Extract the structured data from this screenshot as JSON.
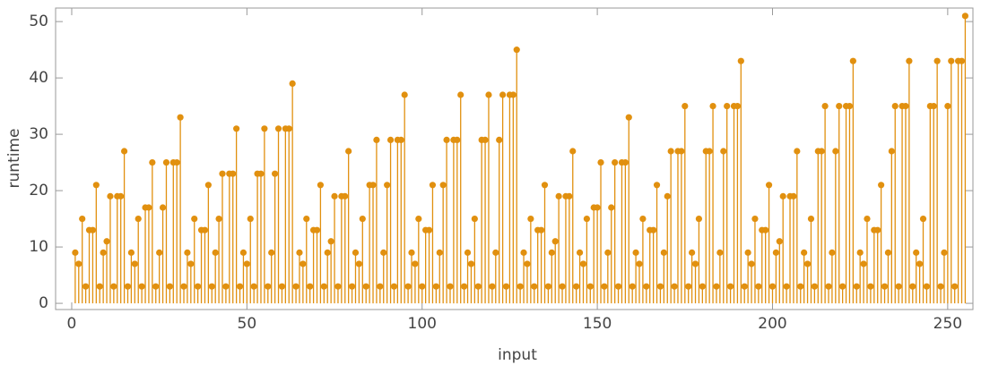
{
  "chart_data": {
    "type": "stem",
    "xlabel": "input",
    "ylabel": "runtime",
    "color": "#e1900f",
    "xlim": [
      -4.6,
      257.2
    ],
    "ylim": [
      -1.1,
      52.4
    ],
    "xticks": [
      0,
      50,
      100,
      150,
      200,
      250
    ],
    "yticks": [
      0,
      10,
      20,
      30,
      40,
      50
    ],
    "x": [
      1,
      2,
      3,
      4,
      5,
      6,
      7,
      8,
      9,
      10,
      11,
      12,
      13,
      14,
      15,
      16,
      17,
      18,
      19,
      20,
      21,
      22,
      23,
      24,
      25,
      26,
      27,
      28,
      29,
      30,
      31,
      32,
      33,
      34,
      35,
      36,
      37,
      38,
      39,
      40,
      41,
      42,
      43,
      44,
      45,
      46,
      47,
      48,
      49,
      50,
      51,
      52,
      53,
      54,
      55,
      56,
      57,
      58,
      59,
      60,
      61,
      62,
      63,
      64,
      65,
      66,
      67,
      68,
      69,
      70,
      71,
      72,
      73,
      74,
      75,
      76,
      77,
      78,
      79,
      80,
      81,
      82,
      83,
      84,
      85,
      86,
      87,
      88,
      89,
      90,
      91,
      92,
      93,
      94,
      95,
      96,
      97,
      98,
      99,
      100,
      101,
      102,
      103,
      104,
      105,
      106,
      107,
      108,
      109,
      110,
      111,
      112,
      113,
      114,
      115,
      116,
      117,
      118,
      119,
      120,
      121,
      122,
      123,
      124,
      125,
      126,
      127,
      128,
      129,
      130,
      131,
      132,
      133,
      134,
      135,
      136,
      137,
      138,
      139,
      140,
      141,
      142,
      143,
      144,
      145,
      146,
      147,
      148,
      149,
      150,
      151,
      152,
      153,
      154,
      155,
      156,
      157,
      158,
      159,
      160,
      161,
      162,
      163,
      164,
      165,
      166,
      167,
      168,
      169,
      170,
      171,
      172,
      173,
      174,
      175,
      176,
      177,
      178,
      179,
      180,
      181,
      182,
      183,
      184,
      185,
      186,
      187,
      188,
      189,
      190,
      191,
      192,
      193,
      194,
      195,
      196,
      197,
      198,
      199,
      200,
      201,
      202,
      203,
      204,
      205,
      206,
      207,
      208,
      209,
      210,
      211,
      212,
      213,
      214,
      215,
      216,
      217,
      218,
      219,
      220,
      221,
      222,
      223,
      224,
      225,
      226,
      227,
      228,
      229,
      230,
      231,
      232,
      233,
      234,
      235,
      236,
      237,
      238,
      239,
      240,
      241,
      242,
      243,
      244,
      245,
      246,
      247,
      248,
      249,
      250,
      251,
      252,
      253,
      254,
      255
    ],
    "values": [
      9,
      7,
      15,
      3,
      13,
      13,
      21,
      3,
      9,
      11,
      19,
      3,
      19,
      19,
      27,
      3,
      9,
      7,
      15,
      3,
      17,
      17,
      25,
      3,
      9,
      17,
      25,
      3,
      25,
      25,
      33,
      3,
      9,
      7,
      15,
      3,
      13,
      13,
      21,
      3,
      9,
      15,
      23,
      3,
      23,
      23,
      31,
      3,
      9,
      7,
      15,
      3,
      23,
      23,
      31,
      3,
      9,
      23,
      31,
      3,
      31,
      31,
      39,
      3,
      9,
      7,
      15,
      3,
      13,
      13,
      21,
      3,
      9,
      11,
      19,
      3,
      19,
      19,
      27,
      3,
      9,
      7,
      15,
      3,
      21,
      21,
      29,
      3,
      9,
      21,
      29,
      3,
      29,
      29,
      37,
      3,
      9,
      7,
      15,
      3,
      13,
      13,
      21,
      3,
      9,
      21,
      29,
      3,
      29,
      29,
      37,
      3,
      9,
      7,
      15,
      3,
      29,
      29,
      37,
      3,
      9,
      29,
      37,
      3,
      37,
      37,
      45,
      3,
      9,
      7,
      15,
      3,
      13,
      13,
      21,
      3,
      9,
      11,
      19,
      3,
      19,
      19,
      27,
      3,
      9,
      7,
      15,
      3,
      17,
      17,
      25,
      3,
      9,
      17,
      25,
      3,
      25,
      25,
      33,
      3,
      9,
      7,
      15,
      3,
      13,
      13,
      21,
      3,
      9,
      19,
      27,
      3,
      27,
      27,
      35,
      3,
      9,
      7,
      15,
      3,
      27,
      27,
      35,
      3,
      9,
      27,
      35,
      3,
      35,
      35,
      43,
      3,
      9,
      7,
      15,
      3,
      13,
      13,
      21,
      3,
      9,
      11,
      19,
      3,
      19,
      19,
      27,
      3,
      9,
      7,
      15,
      3,
      27,
      27,
      35,
      3,
      9,
      27,
      35,
      3,
      35,
      35,
      43,
      3,
      9,
      7,
      15,
      3,
      13,
      13,
      21,
      3,
      9,
      27,
      35,
      3,
      35,
      35,
      43,
      3,
      9,
      7,
      15,
      3,
      35,
      35,
      43,
      3,
      9,
      35,
      43,
      3,
      43,
      43,
      51
    ]
  }
}
